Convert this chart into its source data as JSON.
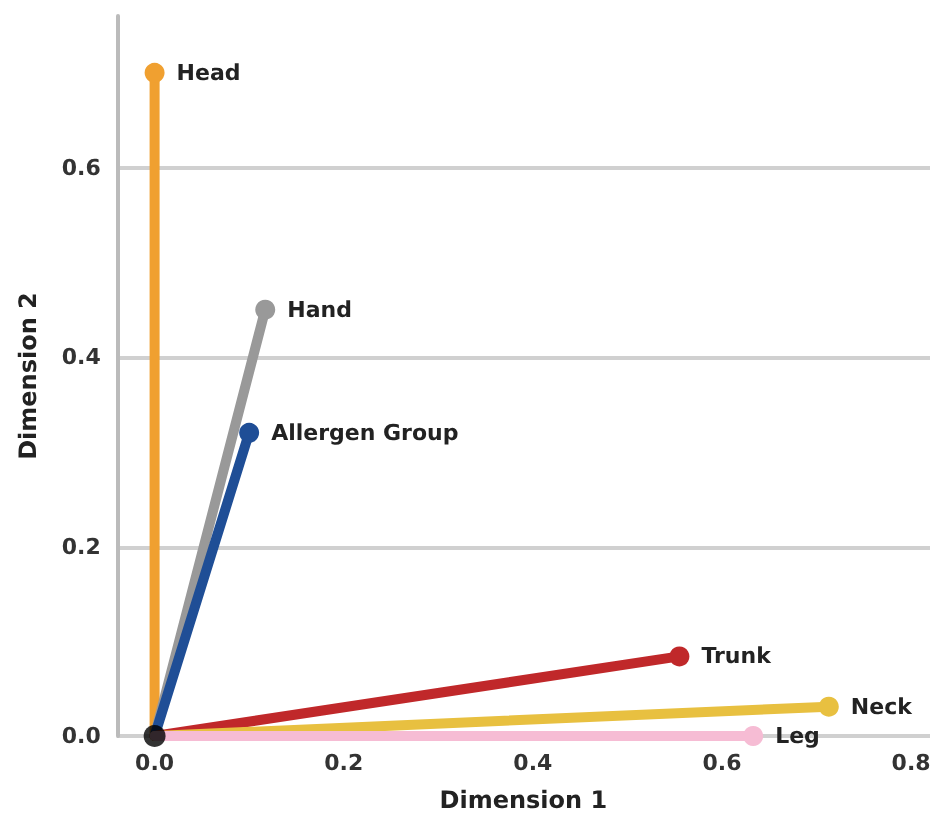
{
  "chart_data": {
    "type": "line",
    "xlabel": "Dimension 1",
    "ylabel": "Dimension 2",
    "xlim": [
      -0.04,
      0.82
    ],
    "xticks": [
      {
        "value": 0,
        "label": "0.0"
      },
      0.2,
      0.4,
      0.6,
      0.8
    ],
    "ylim": [
      0,
      0.76
    ],
    "yticks": [
      {
        "value": 0,
        "label": "0.0"
      },
      0.2,
      0.4,
      0.6
    ],
    "grid": "y",
    "legend": false,
    "marker": "circle",
    "line_style": "solid",
    "series": [
      {
        "name": "Head",
        "color": "#f0a030",
        "x": [
          0,
          0
        ],
        "values": [
          0,
          0.7
        ]
      },
      {
        "name": "Hand",
        "color": "#999999",
        "x": [
          0,
          0.117
        ],
        "values": [
          0,
          0.45
        ]
      },
      {
        "name": "Allergen Group",
        "color": "#1f4e96",
        "x": [
          0,
          0.1
        ],
        "values": [
          0,
          0.32
        ]
      },
      {
        "name": "Trunk",
        "color": "#c0282a",
        "x": [
          0,
          0.555
        ],
        "values": [
          0,
          0.084
        ]
      },
      {
        "name": "Neck",
        "color": "#e8c040",
        "x": [
          0,
          0.713
        ],
        "values": [
          0,
          0.031
        ]
      },
      {
        "name": "Leg",
        "color": "#f6bcd4",
        "x": [
          0,
          0.633
        ],
        "values": [
          0,
          0.0
        ]
      },
      {
        "type": "scatter",
        "color": "#000000",
        "x": [
          0
        ],
        "values": [
          0
        ]
      }
    ]
  }
}
